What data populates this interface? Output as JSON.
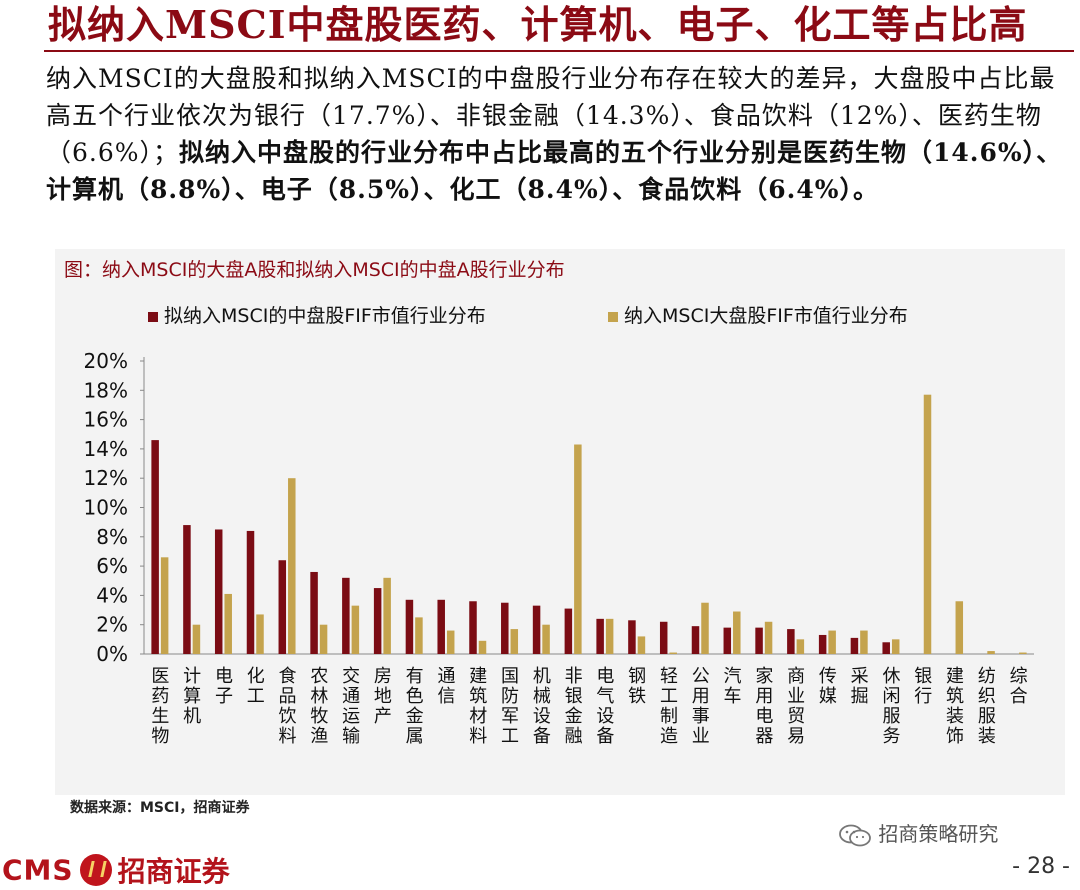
{
  "page": {
    "title": "拟纳入MSCI中盘股医药、计算机、电子、化工等占比高",
    "paragraph_normal": "纳入MSCI的大盘股和拟纳入MSCI的中盘股行业分布存在较大的差异，大盘股中占比最高五个行业依次为银行（17.7%）、非银金融（14.3%）、食品饮料（12%）、医药生物（6.6%）；",
    "paragraph_bold": "拟纳入中盘股的行业分布中占比最高的五个行业分别是医药生物（14.6%）、计算机（8.8%）、电子（8.5%）、化工（8.4%）、食品饮料（6.4%）。",
    "source": "数据来源：MSCI，招商证券",
    "wechat_label": "招商策略研究",
    "logo_text_en": "CMS",
    "logo_text_cn": "招商证券",
    "page_number": "- 28 -"
  },
  "chart_data": {
    "type": "bar",
    "title": "图：纳入MSCI的大盘A股和拟纳入MSCI的中盘A股行业分布",
    "categories": [
      "医药生物",
      "计算机",
      "电子",
      "化工",
      "食品饮料",
      "农林牧渔",
      "交通运输",
      "房地产",
      "有色金属",
      "通信",
      "建筑材料",
      "国防军工",
      "机械设备",
      "非银金融",
      "电气设备",
      "钢铁",
      "轻工制造",
      "公用事业",
      "汽车",
      "家用电器",
      "商业贸易",
      "传媒",
      "采掘",
      "休闲服务",
      "银行",
      "建筑装饰",
      "纺织服装",
      "综合"
    ],
    "series": [
      {
        "name": "拟纳入MSCI的中盘股FIF市值行业分布",
        "color": "#7b0c14",
        "values": [
          14.6,
          8.8,
          8.5,
          8.4,
          6.4,
          5.6,
          5.2,
          4.5,
          3.7,
          3.7,
          3.6,
          3.5,
          3.3,
          3.1,
          2.4,
          2.3,
          2.2,
          1.9,
          1.8,
          1.8,
          1.7,
          1.3,
          1.1,
          0.8,
          0,
          0,
          0,
          0
        ]
      },
      {
        "name": "纳入MSCI大盘股FIF市值行业分布",
        "color": "#c4a34d",
        "values": [
          6.6,
          2.0,
          4.1,
          2.7,
          12.0,
          2.0,
          3.3,
          5.2,
          2.5,
          1.6,
          0.9,
          1.7,
          2.0,
          14.3,
          2.4,
          1.2,
          0.1,
          3.5,
          2.9,
          2.2,
          1.0,
          1.6,
          1.6,
          1.0,
          17.7,
          3.6,
          0.2,
          0.1
        ]
      }
    ],
    "ylim": [
      0,
      20
    ],
    "yticks": [
      "0%",
      "2%",
      "4%",
      "6%",
      "8%",
      "10%",
      "12%",
      "14%",
      "16%",
      "18%",
      "20%"
    ],
    "legend_position": "top",
    "grid": false
  }
}
